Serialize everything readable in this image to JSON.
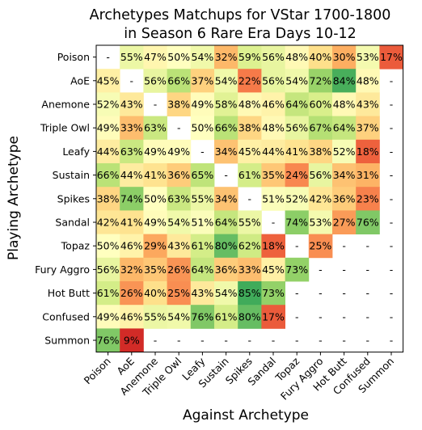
{
  "chart_data": {
    "type": "heatmap",
    "title_line1": "Archetypes Matchups for VStar 1700-1800",
    "title_line2": "in Season 6 Rare Era Days 10-12",
    "xlabel": "Against Archetype",
    "ylabel": "Playing Archetype",
    "rows": [
      "Poison",
      "AoE",
      "Anemone",
      "Triple Owl",
      "Leafy",
      "Sustain",
      "Spikes",
      "Sandal",
      "Topaz",
      "Fury Aggro",
      "Hot Butt",
      "Confused",
      "Summon"
    ],
    "cols": [
      "Poison",
      "AoE",
      "Anemone",
      "Triple Owl",
      "Leafy",
      "Sustain",
      "Spikes",
      "Sandal",
      "Topaz",
      "Fury Aggro",
      "Hot Butt",
      "Confused",
      "Summon"
    ],
    "empty_label": "-",
    "values": [
      [
        null,
        55,
        47,
        50,
        54,
        32,
        59,
        56,
        48,
        40,
        30,
        53,
        17
      ],
      [
        45,
        null,
        56,
        66,
        37,
        54,
        22,
        56,
        54,
        72,
        84,
        48,
        null
      ],
      [
        52,
        43,
        null,
        38,
        49,
        58,
        48,
        46,
        64,
        60,
        48,
        43,
        null
      ],
      [
        49,
        33,
        63,
        null,
        50,
        66,
        38,
        48,
        56,
        67,
        64,
        37,
        null
      ],
      [
        44,
        63,
        49,
        49,
        null,
        34,
        45,
        44,
        41,
        38,
        52,
        18,
        null
      ],
      [
        66,
        44,
        41,
        36,
        65,
        null,
        61,
        35,
        24,
        56,
        34,
        31,
        null
      ],
      [
        38,
        74,
        50,
        63,
        55,
        34,
        null,
        51,
        52,
        42,
        36,
        23,
        null
      ],
      [
        42,
        41,
        49,
        54,
        51,
        64,
        55,
        null,
        74,
        53,
        27,
        76,
        null
      ],
      [
        50,
        46,
        29,
        43,
        61,
        80,
        62,
        18,
        null,
        25,
        null,
        null,
        null
      ],
      [
        56,
        32,
        35,
        26,
        64,
        36,
        33,
        45,
        73,
        null,
        null,
        null,
        null
      ],
      [
        61,
        26,
        40,
        25,
        43,
        54,
        85,
        73,
        null,
        null,
        null,
        null,
        null
      ],
      [
        49,
        46,
        55,
        54,
        76,
        61,
        80,
        17,
        null,
        null,
        null,
        null,
        null
      ],
      [
        76,
        9,
        null,
        null,
        null,
        null,
        null,
        null,
        null,
        null,
        null,
        null,
        null
      ]
    ],
    "value_suffix": "%",
    "colormap": "RdYlGn",
    "vmin": 0,
    "vmax": 100
  }
}
